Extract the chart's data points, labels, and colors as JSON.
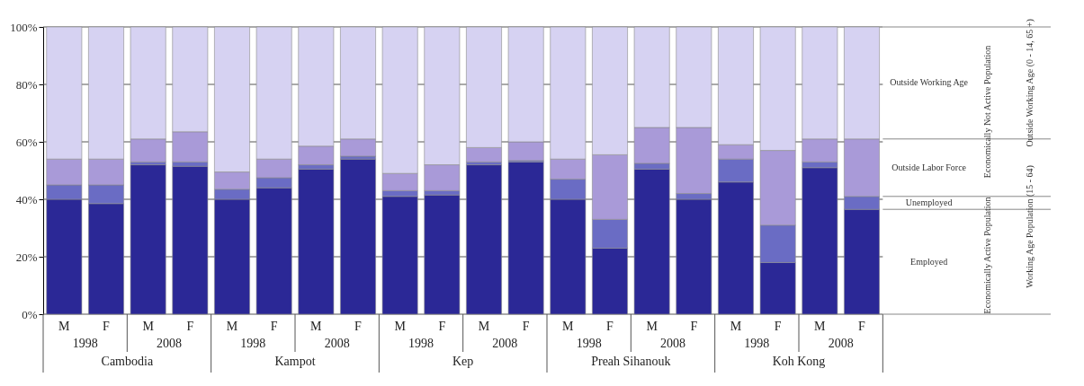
{
  "chart_data": {
    "type": "bar",
    "stacked": true,
    "categories": [
      "M",
      "F",
      "M",
      "F",
      "M",
      "F",
      "M",
      "F",
      "M",
      "F",
      "M",
      "F",
      "M",
      "F",
      "M",
      "F",
      "M",
      "F",
      "M",
      "F"
    ],
    "series": [
      {
        "name": "Employed",
        "color": "#2b2896",
        "values": [
          40,
          38.5,
          52,
          51.5,
          40,
          44,
          50.5,
          54,
          41,
          41.5,
          52,
          53,
          40,
          23,
          50.5,
          40,
          46,
          18,
          51,
          36.5
        ]
      },
      {
        "name": "Unemployed",
        "color": "#6a6cc4",
        "values": [
          5,
          6.5,
          1,
          1.5,
          3.5,
          3.5,
          1.5,
          1,
          2,
          1.5,
          1,
          0.5,
          7,
          10,
          2,
          2,
          8,
          13,
          2,
          4.5
        ]
      },
      {
        "name": "Outside Labor Force",
        "color": "#a99ad8",
        "values": [
          9,
          9,
          8,
          10.5,
          6,
          6.5,
          6.5,
          6,
          6,
          9,
          5,
          6.5,
          7,
          22.5,
          12.5,
          23,
          5,
          26,
          8,
          20
        ]
      },
      {
        "name": "Outside Working Age",
        "color": "#d6d2f2",
        "values": [
          46,
          46,
          39,
          36.5,
          50.5,
          46,
          41.5,
          39,
          51,
          48,
          42,
          40,
          46,
          44.5,
          35,
          35,
          41,
          43,
          39,
          39
        ]
      }
    ],
    "ylim": [
      0,
      100
    ],
    "yticks": [
      {
        "value": 0,
        "label": "0%"
      },
      {
        "value": 20,
        "label": "20%"
      },
      {
        "value": 40,
        "label": "40%"
      },
      {
        "value": 60,
        "label": "60%"
      },
      {
        "value": 80,
        "label": "80%"
      },
      {
        "value": 100,
        "label": "100%"
      }
    ],
    "grid": "y",
    "annotations": [
      "1998",
      "2008",
      "1998",
      "2008",
      "1998",
      "2008",
      "1998",
      "2008",
      "1998",
      "2008",
      "Cambodia",
      "Kampot",
      "Kep",
      "Preah Sihanouk",
      "Koh Kong",
      "Economically Active Population",
      "Economically Not Active Population",
      "Working Age Population (15 - 64)",
      "Outside Working Age (0 - 14, 65 +)"
    ]
  }
}
